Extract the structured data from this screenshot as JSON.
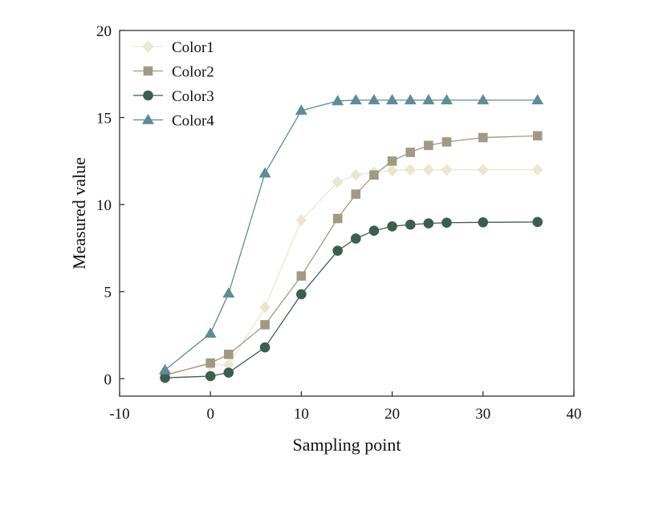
{
  "chart_data": {
    "type": "line",
    "xlabel": "Sampling point",
    "ylabel": "Measured value",
    "xlim": [
      -10,
      40
    ],
    "ylim": [
      -1,
      20
    ],
    "xticks": [
      -10,
      0,
      10,
      20,
      30,
      40
    ],
    "yticks": [
      0,
      5,
      10,
      15,
      20
    ],
    "grid": false,
    "legend_position": "top-left",
    "series": [
      {
        "name": "Color1",
        "color": "#ece6cf",
        "marker": "diamond",
        "x": [
          -5,
          0,
          2,
          6,
          10,
          14,
          16,
          18,
          20,
          22,
          24,
          26,
          30,
          36
        ],
        "y": [
          0.3,
          0.8,
          0.8,
          4.1,
          9.1,
          11.3,
          11.7,
          11.85,
          11.95,
          12.0,
          12.0,
          12.0,
          12.0,
          12.0
        ]
      },
      {
        "name": "Color2",
        "color": "#a09a85",
        "marker": "square",
        "x": [
          -5,
          0,
          2,
          6,
          10,
          14,
          16,
          18,
          20,
          22,
          24,
          26,
          30,
          36
        ],
        "y": [
          0.2,
          0.9,
          1.4,
          3.1,
          5.9,
          9.2,
          10.6,
          11.7,
          12.5,
          13.0,
          13.4,
          13.6,
          13.85,
          13.95
        ]
      },
      {
        "name": "Color3",
        "color": "#3c5e4e",
        "marker": "circle",
        "x": [
          -5,
          0,
          2,
          6,
          10,
          14,
          16,
          18,
          20,
          22,
          24,
          26,
          30,
          36
        ],
        "y": [
          0.05,
          0.15,
          0.35,
          1.8,
          4.85,
          7.35,
          8.05,
          8.5,
          8.75,
          8.85,
          8.92,
          8.96,
          8.98,
          9.0
        ]
      },
      {
        "name": "Color4",
        "color": "#5e8d94",
        "marker": "triangle",
        "x": [
          -5,
          0,
          2,
          6,
          10,
          14,
          16,
          18,
          20,
          22,
          24,
          26,
          30,
          36
        ],
        "y": [
          0.5,
          2.6,
          4.9,
          11.8,
          15.4,
          15.95,
          16.0,
          16.0,
          16.0,
          16.0,
          16.0,
          16.0,
          16.0,
          16.0
        ]
      }
    ]
  }
}
